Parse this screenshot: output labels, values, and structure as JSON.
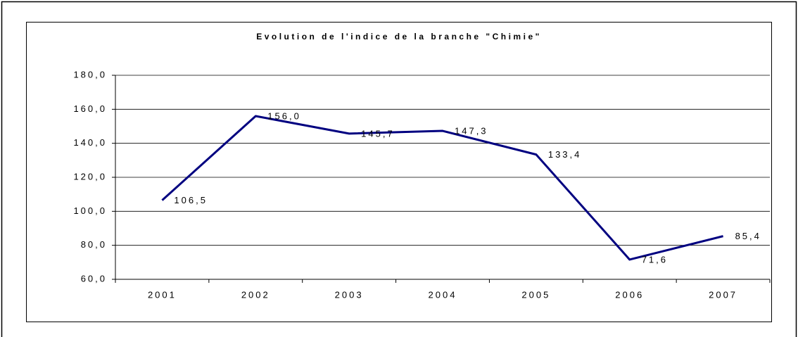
{
  "chart_data": {
    "type": "line",
    "title": "Evolution de l'indice de la branche \"Chimie\"",
    "categories": [
      "2001",
      "2002",
      "2003",
      "2004",
      "2005",
      "2006",
      "2007"
    ],
    "series": [
      {
        "color": "#000080",
        "values": [
          106.5,
          156.0,
          145.7,
          147.3,
          133.4,
          71.6,
          85.4
        ],
        "value_labels": [
          "106,5",
          "156,0",
          "145,7",
          "147,3",
          "133,4",
          "71,6",
          "85,4"
        ]
      }
    ],
    "ylim": [
      60,
      180
    ],
    "yticks": [
      {
        "value": 60,
        "label": "60,0"
      },
      {
        "value": 80,
        "label": "80,0"
      },
      {
        "value": 100,
        "label": "100,0"
      },
      {
        "value": 120,
        "label": "120,0"
      },
      {
        "value": 140,
        "label": "140,0"
      },
      {
        "value": 160,
        "label": "160,0"
      },
      {
        "value": 180,
        "label": "180,0"
      }
    ],
    "grid": true
  }
}
